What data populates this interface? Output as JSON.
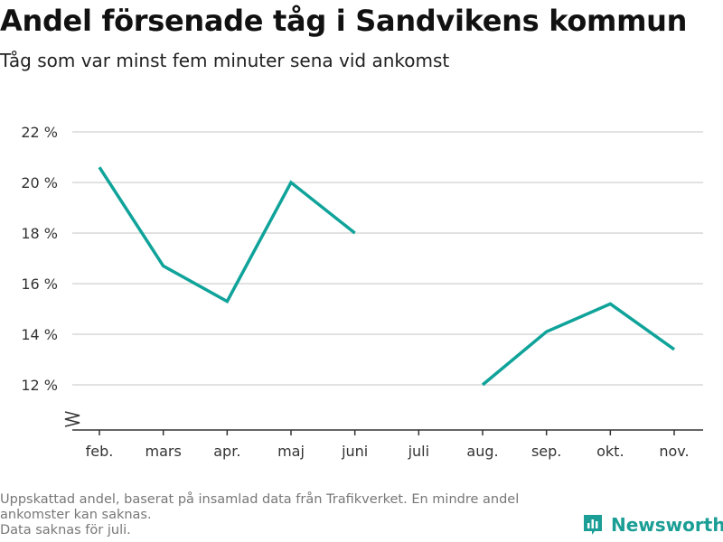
{
  "header": {
    "title": "Andel försenade tåg i Sandvikens kommun",
    "subtitle": "Tåg som var minst fem minuter sena vid ankomst"
  },
  "footer": {
    "note_line1": "Uppskattad andel, baserat på insamlad data från Trafikverket. En mindre andel ankomster kan saknas.",
    "note_line2": "Data saknas för juli.",
    "brand": "Newsworthy"
  },
  "colors": {
    "line": "#0fa39a",
    "grid": "#d9d9d9",
    "brand": "#1a9e95"
  },
  "chart_data": {
    "type": "line",
    "title": "Andel försenade tåg i Sandvikens kommun",
    "subtitle": "Tåg som var minst fem minuter sena vid ankomst",
    "categories": [
      "feb.",
      "mars",
      "apr.",
      "maj",
      "juni",
      "juli",
      "aug.",
      "sep.",
      "okt.",
      "nov."
    ],
    "series": [
      {
        "values": [
          20.6,
          16.7,
          15.3,
          20.0,
          18.0,
          null,
          12.0,
          14.1,
          15.2,
          13.4
        ]
      }
    ],
    "yticks": [
      12,
      14,
      16,
      18,
      20,
      22
    ],
    "ytick_labels": [
      "12 %",
      "14 %",
      "16 %",
      "18 %",
      "20 %",
      "22 %"
    ],
    "ylim": [
      10.5,
      22
    ],
    "y_axis_break": true,
    "grid": true,
    "xlabel": "",
    "ylabel": ""
  }
}
